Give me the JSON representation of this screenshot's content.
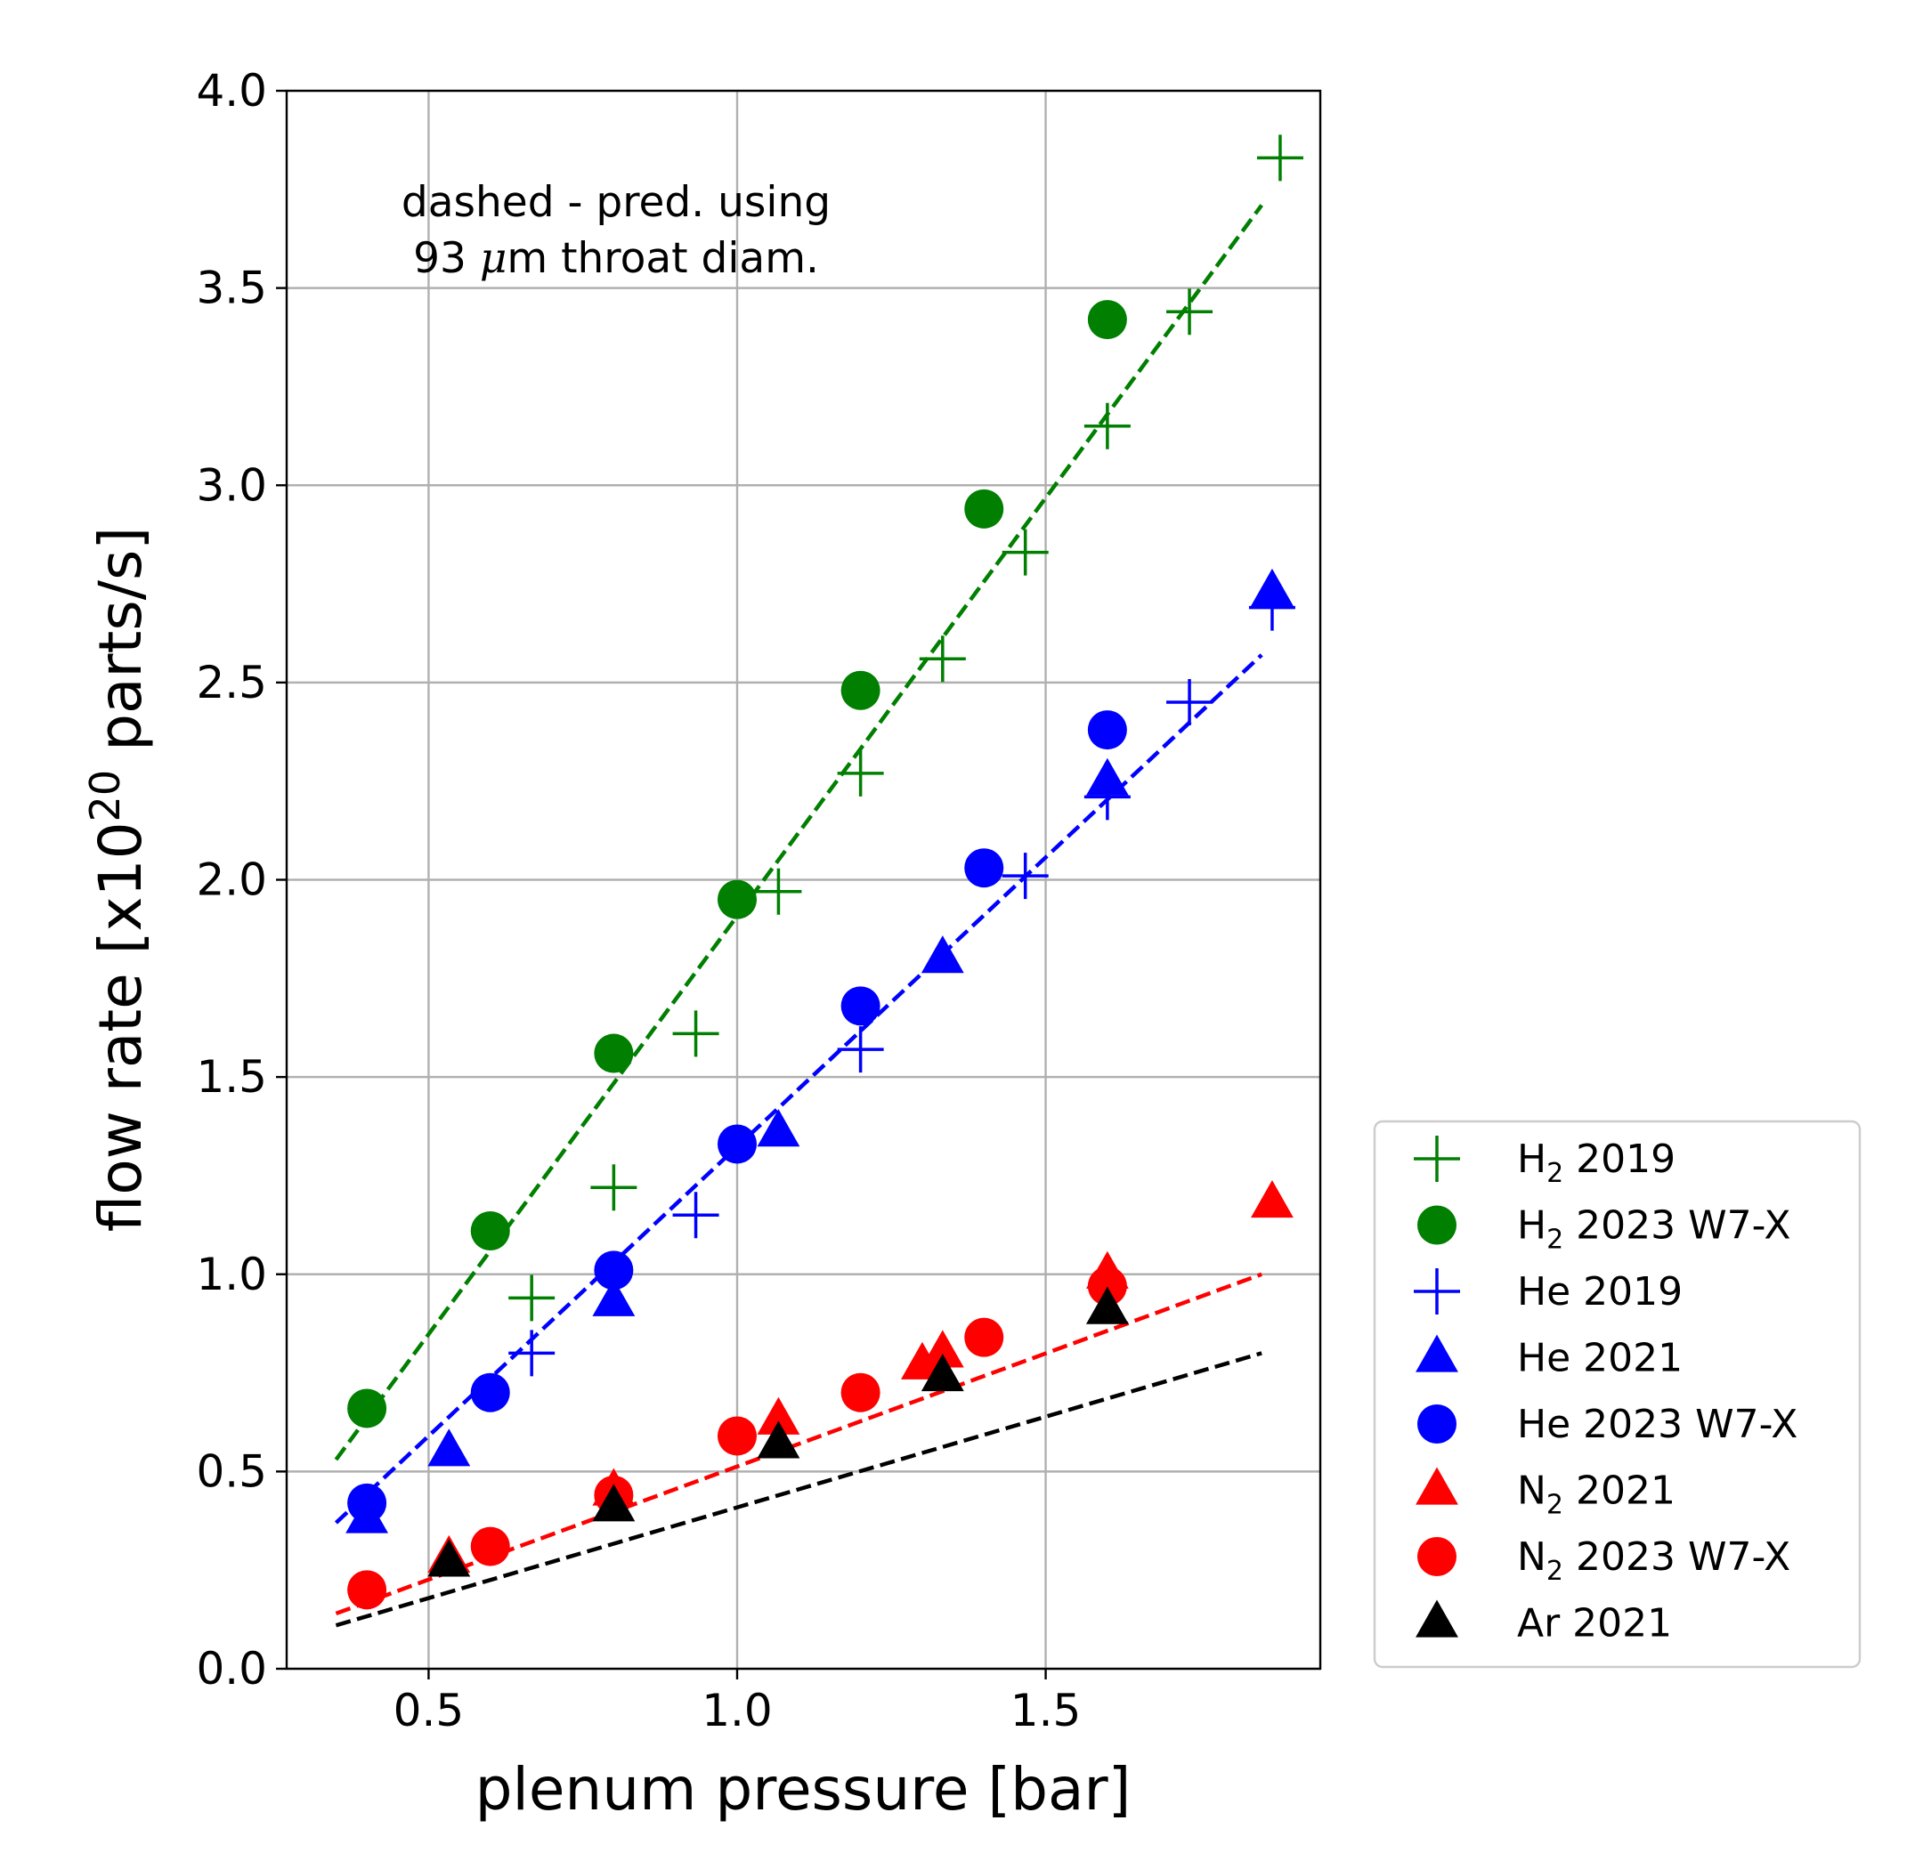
{
  "chart_data": {
    "type": "scatter",
    "xlabel": "plenum pressure [bar]",
    "ylabel": {
      "prefix": "flow rate [x10",
      "exponent": "20",
      "suffix": " parts/s]"
    },
    "xlim": [
      0.27,
      1.945
    ],
    "ylim": [
      0.0,
      4.0
    ],
    "xticks": [
      {
        "value": 0.5,
        "label": "0.5"
      },
      {
        "value": 1.0,
        "label": "1.0"
      },
      {
        "value": 1.5,
        "label": "1.5"
      }
    ],
    "yticks": [
      {
        "value": 0.0,
        "label": "0.0"
      },
      {
        "value": 0.5,
        "label": "0.5"
      },
      {
        "value": 1.0,
        "label": "1.0"
      },
      {
        "value": 1.5,
        "label": "1.5"
      },
      {
        "value": 2.0,
        "label": "2.0"
      },
      {
        "value": 2.5,
        "label": "2.5"
      },
      {
        "value": 3.0,
        "label": "3.0"
      },
      {
        "value": 3.5,
        "label": "3.5"
      },
      {
        "value": 4.0,
        "label": "4.0"
      }
    ],
    "grid": true,
    "annotation": {
      "line1": "dashed - pred. using",
      "line2_prefix": "93 ",
      "line2_mu": "μ",
      "line2_suffix": "m throat diam."
    },
    "prediction_lines": [
      {
        "name": "H2 prediction",
        "color": "#007f00",
        "x": [
          0.35,
          1.85
        ],
        "y": [
          0.53,
          3.71
        ]
      },
      {
        "name": "He prediction",
        "color": "#0000ff",
        "x": [
          0.35,
          1.85
        ],
        "y": [
          0.37,
          2.57
        ]
      },
      {
        "name": "N2 prediction",
        "color": "#ff0000",
        "x": [
          0.35,
          1.85
        ],
        "y": [
          0.14,
          1.0
        ]
      },
      {
        "name": "Ar prediction",
        "color": "#000000",
        "x": [
          0.35,
          1.85
        ],
        "y": [
          0.11,
          0.8
        ]
      }
    ],
    "series": [
      {
        "name": "He 2021",
        "marker": "triangle",
        "color": "#0000ff",
        "points": [
          [
            0.4,
            0.38
          ],
          [
            0.533,
            0.55
          ],
          [
            0.8,
            0.93
          ],
          [
            1.067,
            1.36
          ],
          [
            1.333,
            1.8
          ],
          [
            1.6,
            2.25
          ],
          [
            1.867,
            2.73
          ]
        ]
      },
      {
        "name": "N2 2021",
        "marker": "triangle",
        "color": "#ff0000",
        "points": [
          [
            0.533,
            0.28
          ],
          [
            0.8,
            0.45
          ],
          [
            1.067,
            0.63
          ],
          [
            1.3,
            0.77
          ],
          [
            1.333,
            0.8
          ],
          [
            1.6,
            1.0
          ],
          [
            1.867,
            1.18
          ]
        ]
      },
      {
        "name": "H2 2023 W7-X",
        "marker": "circle",
        "color": "#007f00",
        "points": [
          [
            0.4,
            0.66
          ],
          [
            0.6,
            1.11
          ],
          [
            0.8,
            1.56
          ],
          [
            1.0,
            1.95
          ],
          [
            1.2,
            2.48
          ],
          [
            1.4,
            2.94
          ],
          [
            1.6,
            3.42
          ]
        ]
      },
      {
        "name": "He 2023 W7-X",
        "marker": "circle",
        "color": "#0000ff",
        "points": [
          [
            0.4,
            0.42
          ],
          [
            0.6,
            0.7
          ],
          [
            0.8,
            1.01
          ],
          [
            1.0,
            1.33
          ],
          [
            1.2,
            1.68
          ],
          [
            1.4,
            2.03
          ],
          [
            1.6,
            2.38
          ]
        ]
      },
      {
        "name": "N2 2023 W7-X",
        "marker": "circle",
        "color": "#ff0000",
        "points": [
          [
            0.4,
            0.2
          ],
          [
            0.6,
            0.31
          ],
          [
            0.8,
            0.44
          ],
          [
            1.0,
            0.59
          ],
          [
            1.2,
            0.7
          ],
          [
            1.4,
            0.84
          ],
          [
            1.6,
            0.97
          ]
        ]
      },
      {
        "name": "Ar 2021",
        "marker": "triangle",
        "color": "#000000",
        "points": [
          [
            0.533,
            0.27
          ],
          [
            0.8,
            0.41
          ],
          [
            1.067,
            0.57
          ],
          [
            1.333,
            0.74
          ],
          [
            1.6,
            0.91
          ]
        ]
      },
      {
        "name": "H2 2019",
        "marker": "plus",
        "color": "#007f00",
        "points": [
          [
            0.667,
            0.94
          ],
          [
            0.8,
            1.22
          ],
          [
            0.933,
            1.61
          ],
          [
            1.067,
            1.97
          ],
          [
            1.2,
            2.27
          ],
          [
            1.333,
            2.56
          ],
          [
            1.467,
            2.83
          ],
          [
            1.6,
            3.15
          ],
          [
            1.733,
            3.44
          ],
          [
            1.88,
            3.83
          ]
        ]
      },
      {
        "name": "He 2019",
        "marker": "plus",
        "color": "#0000ff",
        "points": [
          [
            0.667,
            0.8
          ],
          [
            0.933,
            1.15
          ],
          [
            1.2,
            1.57
          ],
          [
            1.467,
            2.01
          ],
          [
            1.6,
            2.21
          ],
          [
            1.733,
            2.45
          ],
          [
            1.867,
            2.69
          ]
        ]
      }
    ],
    "legend": {
      "position": "outside-right-lower",
      "entries": [
        {
          "marker": "plus",
          "color": "#007f00",
          "prefix": "H",
          "sub": "2",
          "suffix": " 2019"
        },
        {
          "marker": "circle",
          "color": "#007f00",
          "prefix": "H",
          "sub": "2",
          "suffix": " 2023 W7-X"
        },
        {
          "marker": "plus",
          "color": "#0000ff",
          "prefix": "He 2019",
          "sub": "",
          "suffix": ""
        },
        {
          "marker": "triangle",
          "color": "#0000ff",
          "prefix": "He 2021",
          "sub": "",
          "suffix": ""
        },
        {
          "marker": "circle",
          "color": "#0000ff",
          "prefix": "He 2023 W7-X",
          "sub": "",
          "suffix": ""
        },
        {
          "marker": "triangle",
          "color": "#ff0000",
          "prefix": "N",
          "sub": "2",
          "suffix": " 2021"
        },
        {
          "marker": "circle",
          "color": "#ff0000",
          "prefix": "N",
          "sub": "2",
          "suffix": " 2023 W7-X"
        },
        {
          "marker": "triangle",
          "color": "#000000",
          "prefix": "Ar 2021",
          "sub": "",
          "suffix": ""
        }
      ]
    }
  }
}
